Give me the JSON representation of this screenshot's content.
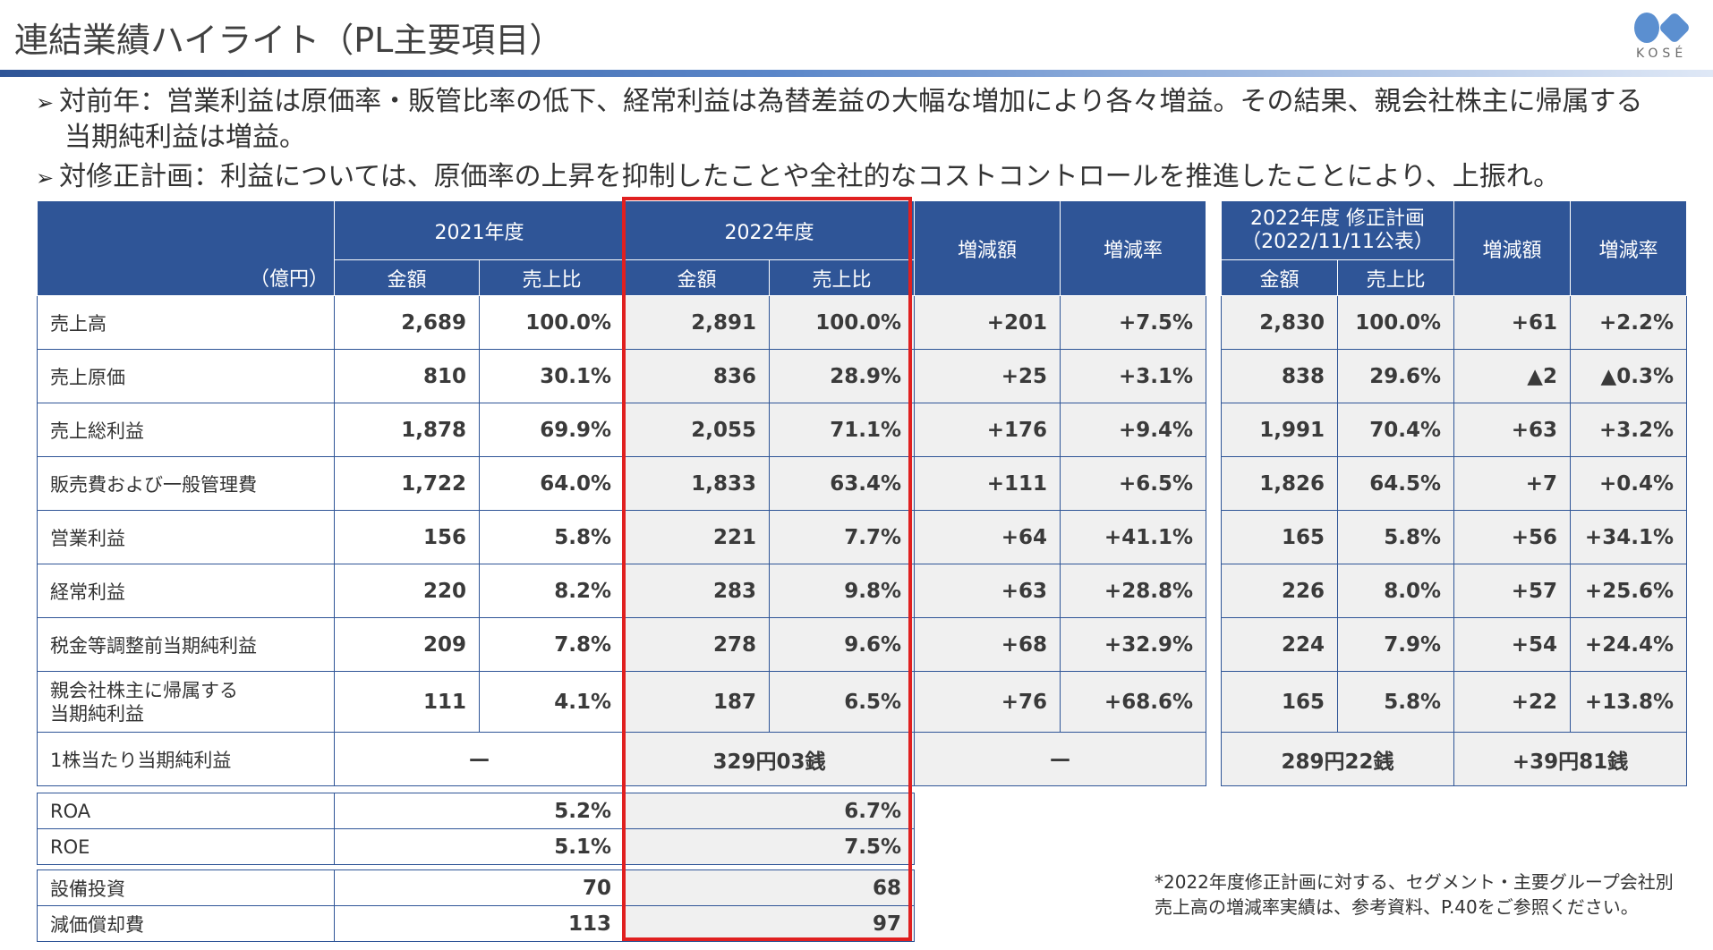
{
  "header": {
    "title": "連結業績ハイライト（PL主要項目）",
    "logo_text": "KOSÉ"
  },
  "bullets": [
    {
      "arrow": "➢",
      "line1": "対前年：営業利益は原価率・販管比率の低下、経常利益は為替差益の大幅な増加により各々増益。その結果、親会社株主に帰属する",
      "line2": "当期純利益は増益。"
    },
    {
      "arrow": "➢",
      "line1": "対修正計画：利益については、原価率の上昇を抑制したことや全社的なコストコントロールを推進したことにより、上振れ。"
    }
  ],
  "main_table": {
    "unit": "（億円）",
    "fy2021": "2021年度",
    "fy2022": "2022年度",
    "amount": "金額",
    "sales_ratio": "売上比",
    "change_amt": "増減額",
    "change_rate": "増減率",
    "rows": [
      {
        "label": "売上高",
        "v21": "2,689",
        "r21": "100.0%",
        "v22": "2,891",
        "r22": "100.0%",
        "d": "+201",
        "dr": "+7.5%"
      },
      {
        "label": "売上原価",
        "v21": "810",
        "r21": "30.1%",
        "v22": "836",
        "r22": "28.9%",
        "d": "+25",
        "dr": "+3.1%"
      },
      {
        "label": "売上総利益",
        "v21": "1,878",
        "r21": "69.9%",
        "v22": "2,055",
        "r22": "71.1%",
        "d": "+176",
        "dr": "+9.4%"
      },
      {
        "label": "販売費および一般管理費",
        "v21": "1,722",
        "r21": "64.0%",
        "v22": "1,833",
        "r22": "63.4%",
        "d": "+111",
        "dr": "+6.5%"
      },
      {
        "label": "営業利益",
        "v21": "156",
        "r21": "5.8%",
        "v22": "221",
        "r22": "7.7%",
        "d": "+64",
        "dr": "+41.1%"
      },
      {
        "label": "経常利益",
        "v21": "220",
        "r21": "8.2%",
        "v22": "283",
        "r22": "9.8%",
        "d": "+63",
        "dr": "+28.8%"
      },
      {
        "label": "税金等調整前当期純利益",
        "v21": "209",
        "r21": "7.8%",
        "v22": "278",
        "r22": "9.6%",
        "d": "+68",
        "dr": "+32.9%"
      },
      {
        "label1": "親会社株主に帰属する",
        "label2": "当期純利益",
        "v21": "111",
        "r21": "4.1%",
        "v22": "187",
        "r22": "6.5%",
        "d": "+76",
        "dr": "+68.6%"
      }
    ],
    "eps": {
      "label": "1株当たり当期純利益",
      "v21": "—",
      "v22": "329円03銭",
      "d": "—"
    }
  },
  "plan_table": {
    "header1": "2022年度 修正計画",
    "header2": "（2022/11/11公表）",
    "amount": "金額",
    "sales_ratio": "売上比",
    "change_amt": "増減額",
    "change_rate": "増減率",
    "rows": [
      {
        "v": "2,830",
        "r": "100.0%",
        "d": "+61",
        "dr": "+2.2%"
      },
      {
        "v": "838",
        "r": "29.6%",
        "d": "▲2",
        "dr": "▲0.3%"
      },
      {
        "v": "1,991",
        "r": "70.4%",
        "d": "+63",
        "dr": "+3.2%"
      },
      {
        "v": "1,826",
        "r": "64.5%",
        "d": "+7",
        "dr": "+0.4%"
      },
      {
        "v": "165",
        "r": "5.8%",
        "d": "+56",
        "dr": "+34.1%"
      },
      {
        "v": "226",
        "r": "8.0%",
        "d": "+57",
        "dr": "+25.6%"
      },
      {
        "v": "224",
        "r": "7.9%",
        "d": "+54",
        "dr": "+24.4%"
      },
      {
        "v": "165",
        "r": "5.8%",
        "d": "+22",
        "dr": "+13.8%"
      }
    ],
    "eps": {
      "v": "289円22銭",
      "d": "+39円81銭"
    }
  },
  "ratio_table": {
    "rows": [
      {
        "label": "ROA",
        "v21": "5.2%",
        "v22": "6.7%"
      },
      {
        "label": "ROE",
        "v21": "5.1%",
        "v22": "7.5%"
      }
    ]
  },
  "capex_table": {
    "rows": [
      {
        "label": "設備投資",
        "v21": "70",
        "v22": "68"
      },
      {
        "label": "減価償却費",
        "v21": "113",
        "v22": "97"
      }
    ]
  },
  "note": {
    "line1": "*2022年度修正計画に対する、セグメント・主要グループ会社別",
    "line2": "売上高の増減率実績は、参考資料、P.40をご参照ください。"
  },
  "colors": {
    "header_blue": "#2f5597",
    "highlight_red": "#e02020",
    "shade": "#f0f0f0"
  }
}
